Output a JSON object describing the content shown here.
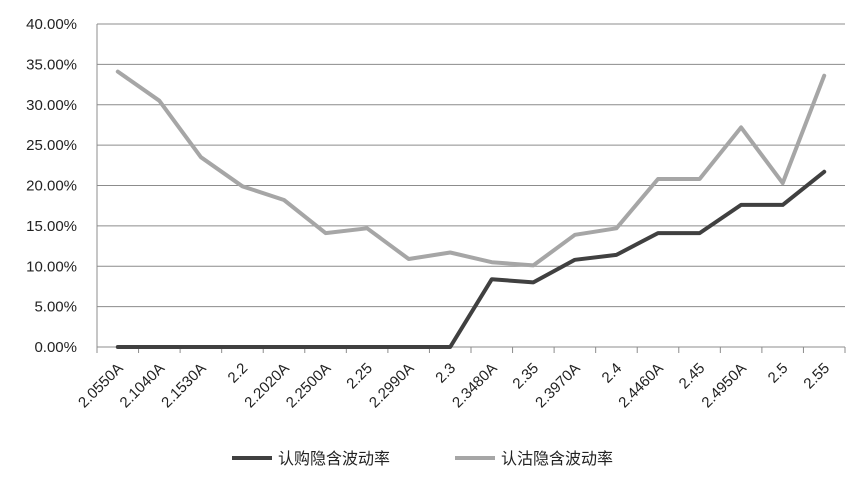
{
  "chart_data": {
    "type": "line",
    "title": "",
    "xlabel": "",
    "ylabel": "",
    "categories": [
      "2.0550A",
      "2.1040A",
      "2.1530A",
      "2.2",
      "2.2020A",
      "2.2500A",
      "2.25",
      "2.2990A",
      "2.3",
      "2.3480A",
      "2.35",
      "2.3970A",
      "2.4",
      "2.4460A",
      "2.45",
      "2.4950A",
      "2.5",
      "2.55"
    ],
    "ylim": [
      0,
      40
    ],
    "yticks": [
      "0.00%",
      "5.00%",
      "10.00%",
      "15.00%",
      "20.00%",
      "25.00%",
      "30.00%",
      "35.00%",
      "40.00%"
    ],
    "grid": true,
    "legend_position": "bottom",
    "series": [
      {
        "name": "认购隐含波动率",
        "color": "#404040",
        "values": [
          0,
          0,
          0,
          0,
          0,
          0,
          0,
          0,
          0,
          8.4,
          8.0,
          10.8,
          11.4,
          14.1,
          14.1,
          17.6,
          17.6,
          21.7
        ]
      },
      {
        "name": "认沽隐含波动率",
        "color": "#a6a6a6",
        "values": [
          34.1,
          30.5,
          23.5,
          19.9,
          18.2,
          14.1,
          14.7,
          10.9,
          11.7,
          10.5,
          10.1,
          13.9,
          14.7,
          20.8,
          20.8,
          27.2,
          20.3,
          33.6
        ]
      }
    ]
  }
}
